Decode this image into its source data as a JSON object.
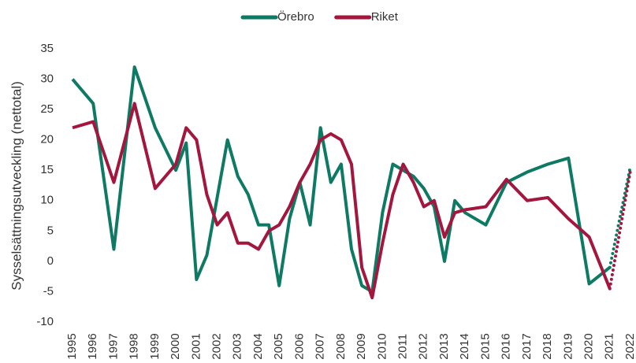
{
  "chart_data": {
    "type": "line",
    "y_label": "Sysselsättningsutveckling (nettotal)",
    "x": [
      1995,
      1996,
      1997,
      1998,
      1999,
      2000,
      2000.5,
      2001,
      2001.5,
      2002,
      2002.5,
      2003,
      2003.5,
      2004,
      2004.5,
      2005,
      2005.5,
      2006,
      2006.5,
      2007,
      2007.5,
      2008,
      2008.5,
      2009,
      2009.5,
      2010,
      2010.5,
      2011,
      2011.5,
      2012,
      2012.5,
      2013,
      2013.5,
      2014,
      2015,
      2016,
      2017,
      2018,
      2019,
      2020,
      2021,
      2022
    ],
    "series": [
      {
        "name": "Örebro",
        "color": "#0f7a64",
        "values": [
          30,
          26,
          2,
          32,
          22,
          15,
          19.5,
          -3,
          1,
          10.5,
          20,
          14,
          11,
          6,
          6,
          -4,
          7,
          13,
          6,
          22,
          13,
          16,
          2,
          -4,
          -5,
          8,
          16,
          15,
          14,
          12,
          9,
          0,
          10,
          8,
          6,
          13,
          14.7,
          16,
          17,
          -3.7,
          -1,
          15.7
        ]
      },
      {
        "name": "Riket",
        "color": "#a3173f",
        "values": [
          22,
          23,
          13,
          26,
          12,
          16,
          22,
          20,
          11,
          6,
          8,
          3,
          3,
          2,
          5,
          6,
          9,
          13,
          16,
          20,
          21,
          20,
          16,
          -1,
          -6,
          3,
          11,
          16,
          13,
          9,
          10,
          4,
          8,
          8.5,
          9,
          13.5,
          10,
          10.5,
          7,
          4,
          -4.5,
          15
        ]
      }
    ],
    "forecast_from": 2021,
    "xlim": [
      1995,
      2022
    ],
    "xticks": [
      1995,
      1996,
      1997,
      1998,
      1999,
      2000,
      2001,
      2002,
      2003,
      2004,
      2005,
      2006,
      2007,
      2008,
      2009,
      2010,
      2011,
      2012,
      2013,
      2014,
      2015,
      2016,
      2017,
      2018,
      2019,
      2020,
      2021,
      2022
    ],
    "ylim": [
      -10,
      35
    ],
    "yticks": [
      -10,
      -5,
      0,
      5,
      10,
      15,
      20,
      25,
      30,
      35
    ],
    "legend": "top",
    "grid": false
  }
}
